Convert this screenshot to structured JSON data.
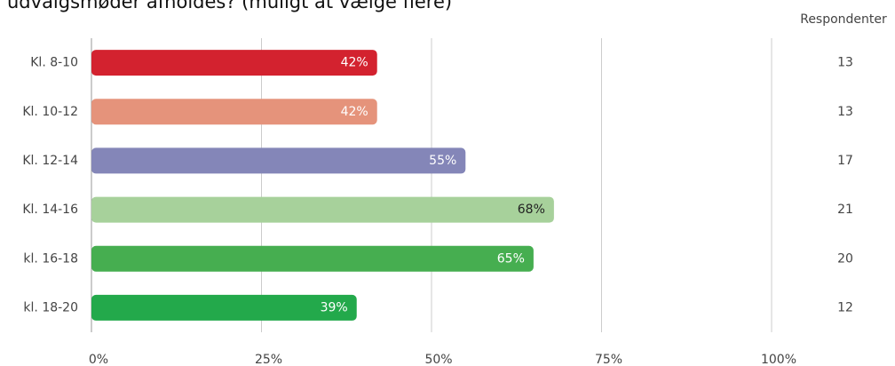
{
  "chart_data": {
    "type": "bar",
    "orientation": "horizontal",
    "title": "udvalgsmøder afholdes? (muligt at vælge flere)",
    "categories": [
      "Kl. 8-10",
      "Kl. 10-12",
      "Kl. 12-14",
      "Kl. 14-16",
      "kl. 16-18",
      "kl. 18-20"
    ],
    "values": [
      42,
      42,
      55,
      68,
      65,
      39
    ],
    "value_labels": [
      "42%",
      "42%",
      "55%",
      "68%",
      "65%",
      "39%"
    ],
    "colors": [
      "#d3222f",
      "#e5937b",
      "#8486b8",
      "#a7d19b",
      "#46ae50",
      "#23a94b"
    ],
    "xlim": [
      0,
      100
    ],
    "xticks": [
      {
        "value": 0,
        "label": "0%"
      },
      {
        "value": 25,
        "label": "25%"
      },
      {
        "value": 50,
        "label": "50%"
      },
      {
        "value": 75,
        "label": "75%"
      },
      {
        "value": 100,
        "label": "100%"
      }
    ],
    "grid": true,
    "respondents": {
      "label": "Respondenter",
      "values": [
        13,
        13,
        17,
        21,
        20,
        12
      ]
    }
  }
}
